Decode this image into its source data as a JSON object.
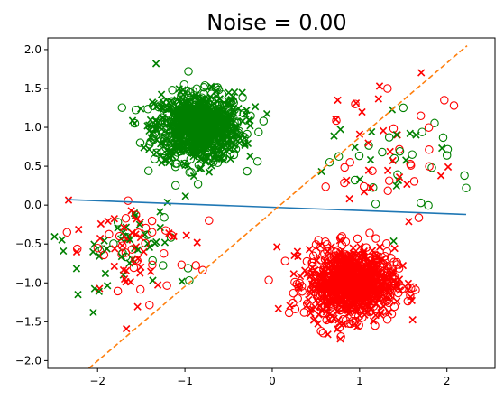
{
  "chart_data": {
    "type": "scatter",
    "title": "Noise = 0.00",
    "xlabel": "",
    "ylabel": "",
    "xlim": [
      -2.57,
      2.55
    ],
    "ylim": [
      -2.1,
      2.15
    ],
    "xticks": [
      -2,
      -1,
      0,
      1,
      2
    ],
    "xtick_labels": [
      "−2",
      "−1",
      "0",
      "1",
      "2"
    ],
    "yticks": [
      -2.0,
      -1.5,
      -1.0,
      -0.5,
      0.0,
      0.5,
      1.0,
      1.5,
      2.0
    ],
    "ytick_labels": [
      "−2.0",
      "−1.5",
      "−1.0",
      "−0.5",
      "0.0",
      "0.5",
      "1.0",
      "1.5",
      "2.0"
    ],
    "grid": false,
    "legend": "none",
    "colors": {
      "red": "#ff0000",
      "green": "#008000",
      "blue_line": "#1f77b4",
      "orange_line": "#ff7f0e"
    },
    "clusters": [
      {
        "center": [
          -0.85,
          1.0
        ],
        "spread": [
          0.25,
          0.22
        ],
        "n_circle": 480,
        "n_x": 520,
        "color": "green"
      },
      {
        "center": [
          0.9,
          -1.0
        ],
        "spread": [
          0.25,
          0.22
        ],
        "n_circle": 520,
        "n_x": 480,
        "color": "red"
      },
      {
        "center": [
          1.35,
          0.6
        ],
        "spread": [
          0.35,
          0.38
        ],
        "n_circle": 40,
        "n_x": 40,
        "color": "mixed"
      },
      {
        "center": [
          -1.6,
          -0.55
        ],
        "spread": [
          0.35,
          0.35
        ],
        "n_circle": 45,
        "n_x": 80,
        "color": "mixed"
      }
    ],
    "sample_points": [
      {
        "x": -2.35,
        "y": -0.35,
        "marker": "o",
        "color": "red"
      },
      {
        "x": -2.05,
        "y": -1.38,
        "marker": "x",
        "color": "green"
      },
      {
        "x": -1.33,
        "y": 1.82,
        "marker": "x",
        "color": "green"
      },
      {
        "x": 0.95,
        "y": 1.3,
        "marker": "o",
        "color": "red"
      },
      {
        "x": 0.75,
        "y": 1.35,
        "marker": "x",
        "color": "red"
      },
      {
        "x": 1.32,
        "y": 1.5,
        "marker": "o",
        "color": "red"
      },
      {
        "x": 1.97,
        "y": 1.35,
        "marker": "o",
        "color": "red"
      },
      {
        "x": 2.08,
        "y": 1.28,
        "marker": "o",
        "color": "red"
      },
      {
        "x": 2.2,
        "y": 0.38,
        "marker": "o",
        "color": "green"
      },
      {
        "x": 2.22,
        "y": 0.22,
        "marker": "o",
        "color": "green"
      },
      {
        "x": 1.7,
        "y": 0.03,
        "marker": "o",
        "color": "green"
      },
      {
        "x": -0.95,
        "y": -0.97,
        "marker": "o",
        "color": "green"
      },
      {
        "x": -0.1,
        "y": 1.08,
        "marker": "o",
        "color": "green"
      },
      {
        "x": 0.78,
        "y": -1.72,
        "marker": "x",
        "color": "red"
      },
      {
        "x": -0.85,
        "y": 0.27,
        "marker": "o",
        "color": "green"
      }
    ],
    "lines": [
      {
        "name": "",
        "style": "solid",
        "color": "blue_line",
        "x": [
          -2.35,
          2.22
        ],
        "y": [
          0.07,
          -0.12
        ]
      },
      {
        "name": "",
        "style": "dashed",
        "color": "orange_line",
        "x": [
          -2.1,
          2.23
        ],
        "y": [
          -2.1,
          2.05
        ]
      }
    ]
  }
}
